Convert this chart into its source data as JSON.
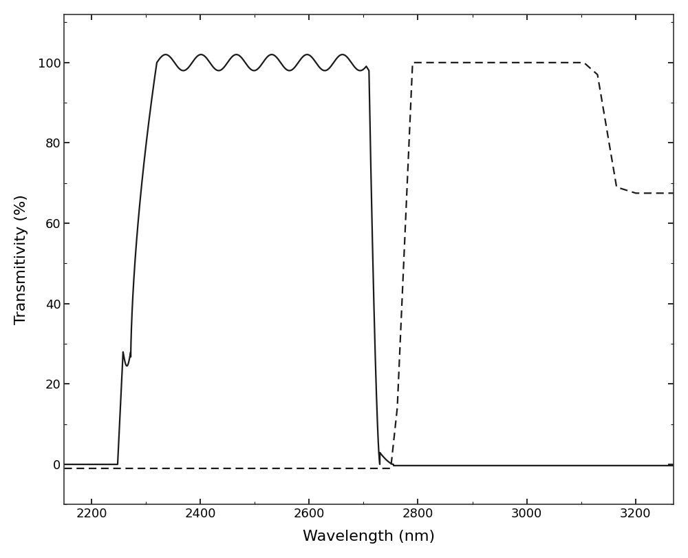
{
  "title": "",
  "xlabel": "Wavelength (nm)",
  "ylabel": "Transmitivity (%)",
  "xlim": [
    2150,
    3270
  ],
  "ylim": [
    -10,
    112
  ],
  "xticks": [
    2200,
    2400,
    2600,
    2800,
    3000,
    3200
  ],
  "yticks": [
    0,
    20,
    40,
    60,
    80,
    100
  ],
  "background_color": "#ffffff",
  "solid_color": "#1a1a1a",
  "dashed_color": "#1a1a1a",
  "linewidth": 1.6
}
